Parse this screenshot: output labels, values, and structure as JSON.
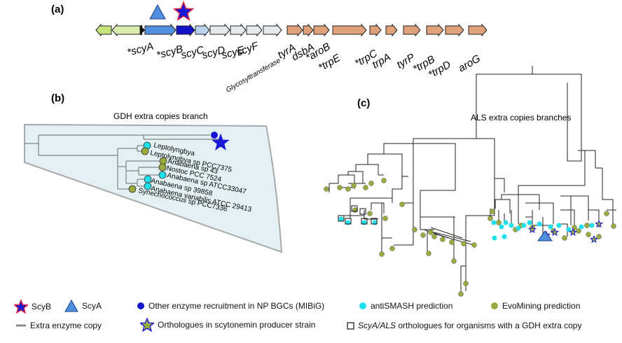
{
  "panels": {
    "a_label": "(a)",
    "b_label": "(b)",
    "c_label": "(c)"
  },
  "panel_a": {
    "genes": [
      {
        "label": "",
        "color": "#c6e27a"
      },
      {
        "label": "",
        "color": "#d9ecb0"
      },
      {
        "label": "*scyA",
        "color": "#4f8fde"
      },
      {
        "label": "*scyB",
        "color": "#1212c8"
      },
      {
        "label": "scyC",
        "color": "#b9d3ec"
      },
      {
        "label": "scyD",
        "color": "#e4e9ee"
      },
      {
        "label": "scyE",
        "color": "#e4e9ee"
      },
      {
        "label": "scyF",
        "color": "#e4e9ee"
      },
      {
        "label": "Glycosyltransferase",
        "color": "#e4e9ee"
      },
      {
        "label": "tyrA",
        "color": "#e0a07a"
      },
      {
        "label": "dsbA",
        "color": "#e0a07a"
      },
      {
        "label": "*aroB",
        "color": "#e0a07a"
      },
      {
        "label": "*trpE",
        "color": "#e0a07a"
      },
      {
        "label": "*trpC",
        "color": "#e0a07a"
      },
      {
        "label": "trpA",
        "color": "#e0a07a"
      },
      {
        "label": "tyrP",
        "color": "#e0a07a"
      },
      {
        "label": "*trpB",
        "color": "#e0a07a"
      },
      {
        "label": "*trpD",
        "color": "#e0a07a"
      },
      {
        "label": "aroG",
        "color": "#e0a07a"
      }
    ]
  },
  "panel_b": {
    "title": "GDH extra copies branch",
    "taxa": [
      "Leptolyngbya",
      "Leptolyngbya sp PCC7375",
      "Anabaena sp 43",
      "Nostoc PCC 7524",
      "Anabaena sp ATCC33047",
      "Anabaena sp 39858",
      "Anabaena variabilis ATCC 29413",
      "Synechococcus sp PCC7336"
    ]
  },
  "panel_c": {
    "title": "ALS extra copies branches"
  },
  "legend": {
    "scyb": "ScyB",
    "scya": "ScyA",
    "recruitment": "Other enzyme recruitment in NP BGCs (MIBiG)",
    "antismash": "antiSMASH prediction",
    "evomining": "EvoMining prediction",
    "extra_copy": "Extra enzyme copy",
    "orthologues": "Orthologues in scytonemin producer strain",
    "scya_als_prefix": "ScyA/ALS",
    "scya_als_suffix": " orthologues for organisms with a GDH extra copy"
  },
  "colors": {
    "scyb_fill": "#1a1ad6",
    "scyb_outline": "#e0203c",
    "scya_fill": "#4f8fde",
    "recruitment": "#1414d0",
    "antismash": "#1ee0ec",
    "evomining": "#9aaa3e",
    "extra_copy": "#888888",
    "panel_b_bg": "#e3f1f4"
  }
}
